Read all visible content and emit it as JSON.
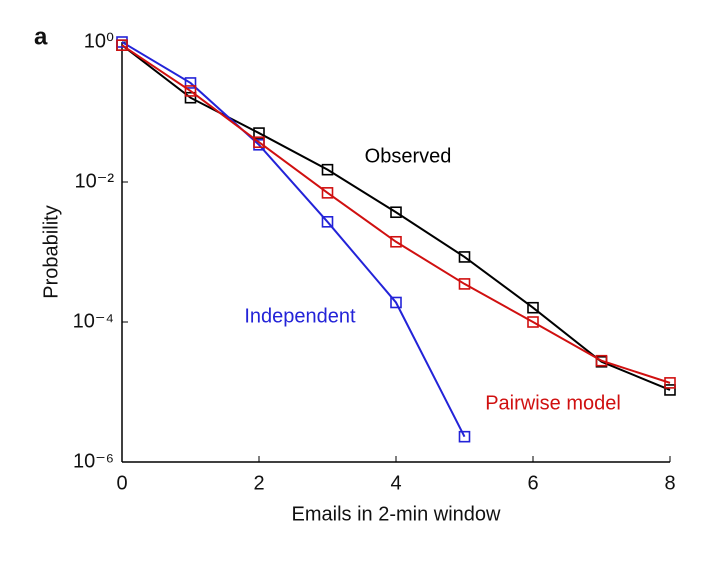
{
  "chart_data": {
    "type": "line",
    "panel_label": "a",
    "x_label": "Emails in 2-min window",
    "y_label": "Probability",
    "x": [
      0,
      1,
      2,
      3,
      4,
      5,
      6,
      7,
      8
    ],
    "xlim": [
      0,
      8
    ],
    "xticks": [
      0,
      2,
      4,
      6,
      8
    ],
    "ylim": [
      1e-06,
      1
    ],
    "log_scale_y": true,
    "yticks": [
      {
        "value": 1,
        "label": "10⁰"
      },
      {
        "value": 0.01,
        "label": "10⁻²"
      },
      {
        "value": 0.0001,
        "label": "10⁻⁴"
      },
      {
        "value": 1e-06,
        "label": "10⁻⁶"
      }
    ],
    "series": [
      {
        "name": "Observed",
        "color": "#000000",
        "values": [
          0.9,
          0.16,
          0.05,
          0.015,
          0.0037,
          0.00085,
          0.00016,
          2.7e-05,
          1.07e-05
        ]
      },
      {
        "name": "Independent",
        "color": "#2323d8",
        "values": [
          1.0,
          0.26,
          0.034,
          0.0027,
          0.00019,
          2.3e-06,
          null,
          null,
          null
        ]
      },
      {
        "name": "Pairwise model",
        "color": "#d01010",
        "values": [
          0.9,
          0.2,
          0.037,
          0.007,
          0.0014,
          0.00035,
          0.0001,
          2.8e-05,
          1.35e-05
        ]
      }
    ]
  }
}
